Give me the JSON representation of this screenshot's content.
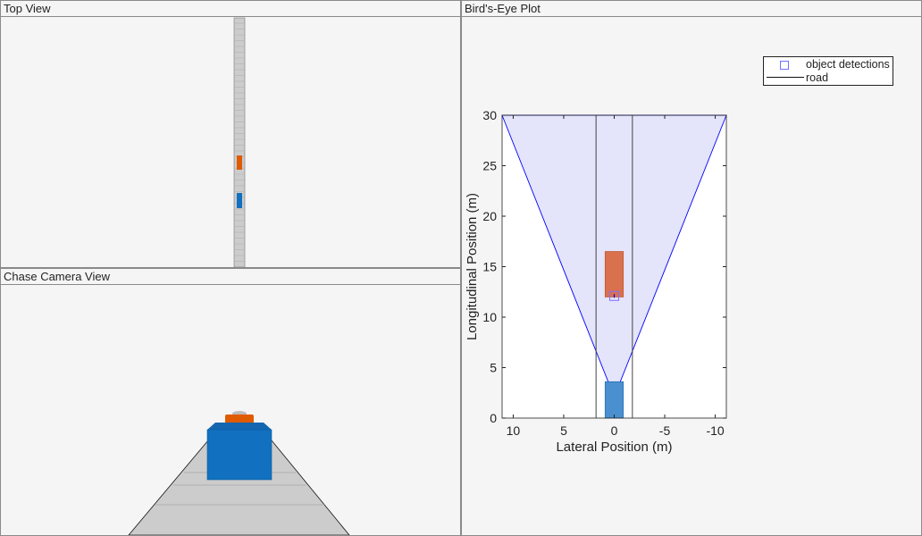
{
  "panels": {
    "top_view": "Top View",
    "chase_view": "Chase Camera View",
    "birds_eye": "Bird's-Eye Plot"
  },
  "colors": {
    "ego": "#1170c0",
    "target": "#e05a00",
    "coverage": "#e4e4fb",
    "coverage_edge": "#0000ff",
    "road": "#cccccc"
  },
  "chart_data": {
    "type": "scatter",
    "xlabel": "Lateral Position (m)",
    "ylabel": "Longitudinal Position (m)",
    "xlim": [
      11.1,
      -11.1
    ],
    "ylim": [
      0,
      30
    ],
    "x_reversed": true,
    "xticks": [
      10,
      5,
      0,
      -5,
      -10
    ],
    "yticks": [
      0,
      5,
      10,
      15,
      20,
      25,
      30
    ],
    "legend": {
      "placement": "top-right",
      "entries": [
        "object detections",
        "road"
      ]
    },
    "coverage_area": {
      "apex": [
        0,
        2.1
      ],
      "range": 30
    },
    "road_boundaries": [
      1.8,
      -1.8
    ],
    "target_vehicle": {
      "x": [
        -0.9,
        0.9
      ],
      "y": [
        12,
        16.5
      ]
    },
    "ego_vehicle": {
      "x": [
        -0.9,
        0.9
      ],
      "y": [
        0,
        3.6
      ]
    },
    "detections": [
      {
        "x": 0,
        "y": 12.1
      }
    ]
  }
}
